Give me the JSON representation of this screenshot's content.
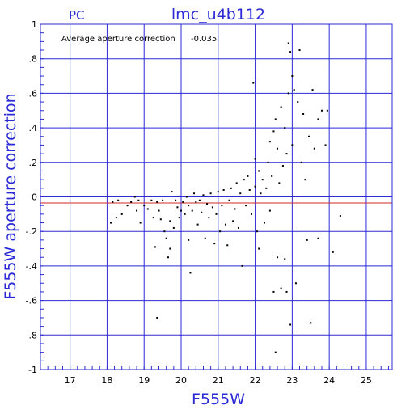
{
  "chart_data": {
    "type": "scatter",
    "title": "lmc_u4b112",
    "corner_label": "PC",
    "annotation_label": "Average aperture correction",
    "annotation_value": "-0.035",
    "xlabel": "F555W",
    "ylabel": "F555W aperture correction",
    "xlim": [
      16.2,
      25.7
    ],
    "ylim": [
      -1,
      1
    ],
    "x_ticks": [
      17,
      18,
      19,
      20,
      21,
      22,
      23,
      24,
      25
    ],
    "y_ticks": [
      -1,
      -0.8,
      -0.6,
      -0.4,
      -0.2,
      0,
      0.2,
      0.4,
      0.6,
      0.8,
      1
    ],
    "grid": true,
    "reference_lines": [
      {
        "y": 0,
        "color": "#2a2ad6"
      },
      {
        "y": -0.035,
        "color": "#cc2a2a"
      }
    ],
    "colors": {
      "frame": "#2a2ad6",
      "text": "#2a2ad6",
      "points": "#000000",
      "average_line": "#cc2a2a"
    },
    "series": [
      {
        "points": [
          [
            18.1,
            -0.15
          ],
          [
            18.15,
            -0.03
          ],
          [
            18.25,
            -0.12
          ],
          [
            18.3,
            -0.02
          ],
          [
            18.4,
            -0.1
          ],
          [
            18.55,
            -0.05
          ],
          [
            18.65,
            -0.03
          ],
          [
            18.75,
            0.0
          ],
          [
            18.8,
            -0.08
          ],
          [
            18.85,
            -0.02
          ],
          [
            18.9,
            -0.15
          ],
          [
            19.0,
            -0.05
          ],
          [
            19.1,
            -0.07
          ],
          [
            19.2,
            -0.02
          ],
          [
            19.25,
            -0.12
          ],
          [
            19.3,
            -0.29
          ],
          [
            19.35,
            -0.03
          ],
          [
            19.35,
            -0.7
          ],
          [
            19.4,
            -0.08
          ],
          [
            19.45,
            -0.13
          ],
          [
            19.5,
            -0.02
          ],
          [
            19.55,
            -0.2
          ],
          [
            19.6,
            -0.24
          ],
          [
            19.65,
            -0.35
          ],
          [
            19.7,
            -0.14
          ],
          [
            19.7,
            -0.3
          ],
          [
            19.75,
            0.03
          ],
          [
            19.8,
            -0.18
          ],
          [
            19.85,
            -0.02
          ],
          [
            19.9,
            -0.06
          ],
          [
            19.95,
            -0.12
          ],
          [
            20.0,
            -0.08
          ],
          [
            20.05,
            -0.03
          ],
          [
            20.1,
            -0.1
          ],
          [
            20.15,
            0.0
          ],
          [
            20.2,
            -0.05
          ],
          [
            20.2,
            -0.25
          ],
          [
            20.25,
            -0.44
          ],
          [
            20.3,
            -0.08
          ],
          [
            20.35,
            0.02
          ],
          [
            20.4,
            -0.03
          ],
          [
            20.45,
            -0.16
          ],
          [
            20.5,
            -0.02
          ],
          [
            20.55,
            -0.09
          ],
          [
            20.6,
            0.01
          ],
          [
            20.65,
            -0.24
          ],
          [
            20.7,
            -0.04
          ],
          [
            20.75,
            -0.12
          ],
          [
            20.8,
            0.02
          ],
          [
            20.85,
            -0.06
          ],
          [
            20.9,
            -0.27
          ],
          [
            20.95,
            -0.1
          ],
          [
            21.0,
            0.03
          ],
          [
            21.05,
            -0.2
          ],
          [
            21.1,
            -0.05
          ],
          [
            21.15,
            0.04
          ],
          [
            21.2,
            -0.16
          ],
          [
            21.25,
            -0.28
          ],
          [
            21.3,
            -0.02
          ],
          [
            21.35,
            0.05
          ],
          [
            21.4,
            -0.14
          ],
          [
            21.45,
            -0.07
          ],
          [
            21.5,
            0.08
          ],
          [
            21.55,
            -0.18
          ],
          [
            21.6,
            0.02
          ],
          [
            21.65,
            -0.4
          ],
          [
            21.7,
            0.1
          ],
          [
            21.75,
            -0.05
          ],
          [
            21.8,
            0.12
          ],
          [
            21.85,
            0.04
          ],
          [
            21.9,
            -0.1
          ],
          [
            21.95,
            0.66
          ],
          [
            22.0,
            0.06
          ],
          [
            22.0,
            0.22
          ],
          [
            22.05,
            -0.2
          ],
          [
            22.1,
            0.15
          ],
          [
            22.1,
            -0.3
          ],
          [
            22.15,
            0.02
          ],
          [
            22.2,
            0.1
          ],
          [
            22.25,
            -0.15
          ],
          [
            22.3,
            0.05
          ],
          [
            22.35,
            0.2
          ],
          [
            22.4,
            0.32
          ],
          [
            22.4,
            -0.08
          ],
          [
            22.45,
            0.12
          ],
          [
            22.5,
            0.38
          ],
          [
            22.5,
            -0.55
          ],
          [
            22.55,
            0.45
          ],
          [
            22.55,
            -0.9
          ],
          [
            22.6,
            0.28
          ],
          [
            22.6,
            -0.35
          ],
          [
            22.65,
            0.08
          ],
          [
            22.7,
            0.52
          ],
          [
            22.7,
            -0.53
          ],
          [
            22.75,
            0.18
          ],
          [
            22.8,
            0.4
          ],
          [
            22.8,
            -0.36
          ],
          [
            22.85,
            0.25
          ],
          [
            22.85,
            -0.55
          ],
          [
            22.9,
            0.6
          ],
          [
            22.9,
            0.89
          ],
          [
            22.95,
            0.84
          ],
          [
            22.95,
            -0.74
          ],
          [
            23.0,
            0.7
          ],
          [
            23.0,
            0.3
          ],
          [
            23.05,
            0.62
          ],
          [
            23.1,
            -0.5
          ],
          [
            23.15,
            0.55
          ],
          [
            23.2,
            0.85
          ],
          [
            23.25,
            0.2
          ],
          [
            23.3,
            0.48
          ],
          [
            23.35,
            0.1
          ],
          [
            23.4,
            -0.25
          ],
          [
            23.45,
            0.35
          ],
          [
            23.5,
            -0.73
          ],
          [
            23.55,
            0.62
          ],
          [
            23.6,
            0.28
          ],
          [
            23.7,
            0.45
          ],
          [
            23.7,
            -0.24
          ],
          [
            23.8,
            0.5
          ],
          [
            23.9,
            0.3
          ],
          [
            23.95,
            0.5
          ],
          [
            24.1,
            -0.32
          ],
          [
            24.3,
            -0.11
          ]
        ]
      }
    ]
  }
}
